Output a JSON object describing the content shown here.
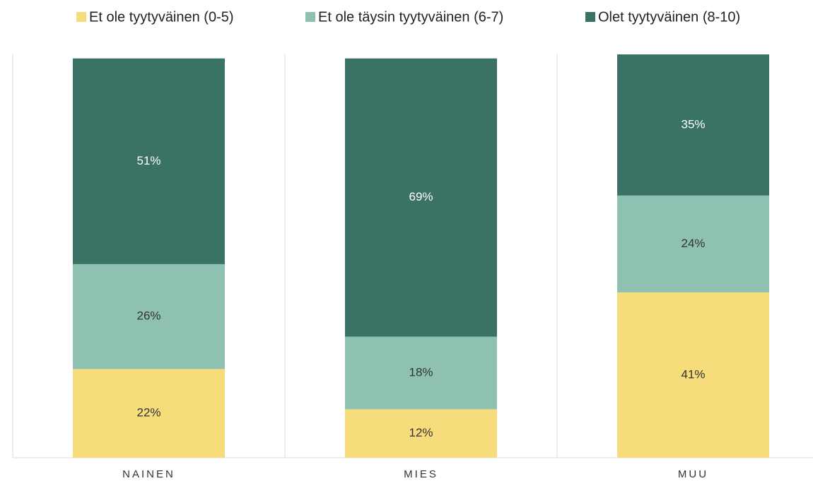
{
  "chart_data": {
    "type": "stacked_bar",
    "categories": [
      "NAINEN",
      "MIES",
      "MUU"
    ],
    "series": [
      {
        "name": "Et ole tyytyväinen (0-5)",
        "color": "#f6dc7a",
        "label_color": "#333333",
        "values": [
          22,
          12,
          41
        ],
        "value_labels": [
          "22%",
          "12%",
          "41%"
        ]
      },
      {
        "name": "Et ole täysin tyytyväinen (6-7)",
        "color": "#8fc1b3",
        "label_color": "#333333",
        "values": [
          26,
          18,
          24
        ],
        "value_labels": [
          "26%",
          "18%",
          "24%"
        ]
      },
      {
        "name": "Olet tyytyväinen (8-10)",
        "color": "#3a7366",
        "label_color": "#ffffff",
        "values": [
          51,
          69,
          35
        ],
        "value_labels": [
          "51%",
          "69%",
          "35%"
        ]
      }
    ],
    "ylim": [
      0,
      100
    ],
    "legend": "top"
  }
}
